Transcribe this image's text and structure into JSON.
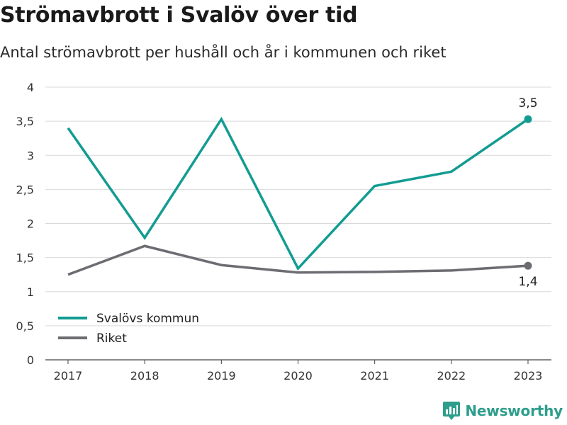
{
  "colors": {
    "svalov": "#129c92",
    "riket": "#6d6c72",
    "grid": "#d9d9d9",
    "axis": "#444444",
    "brand": "#2e9e8c"
  },
  "brand": {
    "name": "Newsworthy",
    "icon": "newsworthy-logo-icon"
  },
  "chart_data": {
    "type": "line",
    "title": "Strömavbrott i Svalöv över tid",
    "subtitle": "Antal strömavbrott per hushåll och år i kommunen och riket",
    "xlabel": "",
    "ylabel": "",
    "categories": [
      "2017",
      "2018",
      "2019",
      "2020",
      "2021",
      "2022",
      "2023"
    ],
    "ylim": [
      0,
      4
    ],
    "yticks": [
      0,
      0.5,
      1,
      1.5,
      2,
      2.5,
      3,
      3.5,
      4
    ],
    "ytick_labels": [
      "0",
      "0,5",
      "1",
      "1,5",
      "2",
      "2,5",
      "3",
      "3,5",
      "4"
    ],
    "grid": true,
    "legend": "bottom-left",
    "series": [
      {
        "name": "Svalövs kommun",
        "color": "#129c92",
        "values": [
          3.4,
          1.79,
          3.53,
          1.34,
          2.55,
          2.76,
          3.53
        ],
        "end_label": "3,5"
      },
      {
        "name": "Riket",
        "color": "#6d6c72",
        "values": [
          1.25,
          1.67,
          1.39,
          1.28,
          1.29,
          1.31,
          1.38
        ],
        "end_label": "1,4"
      }
    ]
  }
}
